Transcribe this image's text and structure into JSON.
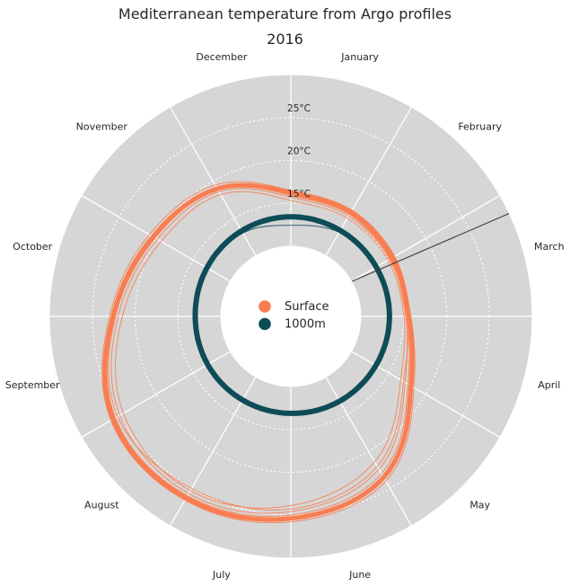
{
  "chart_data": {
    "type": "line",
    "polar": true,
    "title": "Mediterranean temperature from Argo profiles",
    "subtitle": "2016",
    "months": [
      "January",
      "February",
      "March",
      "April",
      "May",
      "June",
      "July",
      "August",
      "September",
      "October",
      "November",
      "December"
    ],
    "month_layout": "January sector starts at 12 o'clock, months proceed clockwise, labels centered in each 30-degree sector",
    "radial_ticks": [
      {
        "label": "15°C",
        "value": 15
      },
      {
        "label": "20°C",
        "value": 20
      },
      {
        "label": "25°C",
        "value": 25
      }
    ],
    "radial_range": [
      10,
      30
    ],
    "grid": {
      "annulus_color": "#d6d6d6",
      "spoke_color": "#ffffff",
      "gridline_color": "#ffffff",
      "gridline_style": "dotted",
      "text_color": "#262626"
    },
    "series": [
      {
        "name": "Surface",
        "color": "#f97d50",
        "line_width": 5,
        "values_unit": "°C at each month start (Jan 1 ... Dec 1)",
        "values": [
          16.2,
          15.8,
          15.5,
          15.6,
          18.0,
          23.5,
          25.4,
          26.3,
          25.8,
          22.6,
          20.4,
          19.0
        ]
      },
      {
        "name": "1000m",
        "color": "#0e4c57",
        "line_width": 6,
        "values_unit": "°C at each month start (Jan 1 ... Dec 1)",
        "values": [
          13.4,
          13.35,
          13.3,
          13.3,
          13.25,
          13.2,
          13.1,
          13.05,
          13.0,
          12.95,
          13.1,
          13.3
        ]
      }
    ],
    "profile_lines": [
      {
        "series": "Surface",
        "color": "#f97d50",
        "line_width": 0.9,
        "values": [
          15.7,
          15.3,
          15.1,
          15.2,
          17.2,
          22.4,
          24.6,
          25.7,
          24.9,
          22.0,
          19.8,
          18.6
        ]
      },
      {
        "series": "Surface",
        "color": "#f97d50",
        "line_width": 0.9,
        "values": [
          15.3,
          15.0,
          14.9,
          15.0,
          16.6,
          21.4,
          23.9,
          25.3,
          24.4,
          21.5,
          19.3,
          18.2
        ]
      },
      {
        "series": "Surface",
        "color": "#f97d50",
        "line_width": 0.9,
        "values": [
          16.5,
          16.1,
          15.8,
          15.8,
          18.4,
          24.0,
          25.8,
          26.6,
          26.1,
          23.0,
          20.9,
          19.5
        ]
      },
      {
        "series": "Surface",
        "color": "#f97d50",
        "line_width": 0.9,
        "values": [
          15.9,
          15.5,
          15.2,
          15.4,
          17.0,
          22.0,
          24.3,
          25.0,
          25.2,
          22.3,
          20.1,
          18.9
        ]
      },
      {
        "series": "Surface",
        "color": "#f97d50",
        "line_width": 0.9,
        "values": [
          16.0,
          15.6,
          15.3,
          15.3,
          17.6,
          23.0,
          25.0,
          26.0,
          25.5,
          22.4,
          20.2,
          19.1
        ]
      },
      {
        "series": "1000m",
        "color": "#0e4c57",
        "line_width": 0.9,
        "values": [
          12.4,
          13.1,
          13.5,
          13.15,
          13.3,
          13.1,
          12.95,
          13.15,
          12.85,
          13.2,
          12.9,
          13.0
        ]
      }
    ],
    "artifact_line": {
      "description": "stray straight data segment pointing toward March",
      "from": {
        "angle_deg": 60.2,
        "temp": 10.0
      },
      "to": {
        "angle_deg": 64.8,
        "temp": 30.0
      },
      "color": "#3d3d3d",
      "line_width": 1.1
    },
    "legend_position": "center"
  },
  "legend": {
    "items": [
      {
        "label": "Surface",
        "color": "#f97d50"
      },
      {
        "label": "1000m",
        "color": "#0e4c57"
      }
    ]
  }
}
